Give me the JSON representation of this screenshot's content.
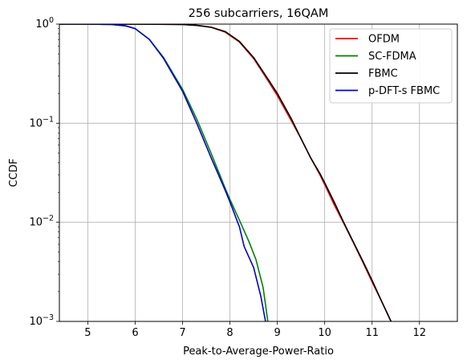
{
  "chart_data": {
    "type": "line",
    "title": "256 subcarriers, 16QAM",
    "xlabel": "Peak-to-Average-Power-Ratio",
    "ylabel": "CCDF",
    "xlim": [
      4.4,
      12.8
    ],
    "ylim": [
      0.001,
      1
    ],
    "yscale": "log",
    "grid": true,
    "legend_position": "top-right",
    "x_ticks": [
      "5",
      "6",
      "7",
      "8",
      "9",
      "10",
      "11",
      "12"
    ],
    "y_ticks": [
      {
        "base": "10",
        "exp": "−3"
      },
      {
        "base": "10",
        "exp": "−2"
      },
      {
        "base": "10",
        "exp": "−1"
      },
      {
        "base": "10",
        "exp": "0"
      }
    ],
    "series": [
      {
        "name": "OFDM",
        "color": "#ff0000",
        "x": [
          4.4,
          5.0,
          6.0,
          6.5,
          7.0,
          7.3,
          7.6,
          7.9,
          8.2,
          8.5,
          8.8,
          9.0,
          9.3,
          9.5,
          9.7,
          9.9,
          10.0,
          10.2,
          10.4,
          10.6,
          10.8,
          11.0,
          11.2,
          11.4
        ],
        "y": [
          1.0,
          1.0,
          0.999,
          0.997,
          0.99,
          0.97,
          0.93,
          0.83,
          0.66,
          0.45,
          0.27,
          0.19,
          0.105,
          0.07,
          0.045,
          0.03,
          0.024,
          0.015,
          0.0098,
          0.0063,
          0.004,
          0.0025,
          0.0016,
          0.001
        ]
      },
      {
        "name": "SC-FDMA",
        "color": "#008000",
        "x": [
          4.4,
          5.0,
          5.5,
          5.8,
          6.0,
          6.3,
          6.6,
          7.0,
          7.3,
          7.6,
          7.9,
          8.0,
          8.2,
          8.4,
          8.55,
          8.7,
          8.8
        ],
        "y": [
          1.0,
          1.0,
          0.99,
          0.96,
          0.9,
          0.7,
          0.46,
          0.22,
          0.11,
          0.05,
          0.022,
          0.017,
          0.0105,
          0.0064,
          0.0042,
          0.0022,
          0.001
        ]
      },
      {
        "name": "FBMC",
        "color": "#000000",
        "x": [
          4.4,
          5.0,
          6.0,
          6.5,
          7.0,
          7.3,
          7.6,
          7.9,
          8.2,
          8.5,
          8.8,
          9.0,
          9.3,
          9.5,
          9.7,
          9.9,
          10.0,
          10.2,
          10.4,
          10.6,
          10.8,
          11.0,
          11.2,
          11.4
        ],
        "y": [
          1.0,
          1.0,
          0.999,
          0.997,
          0.99,
          0.97,
          0.93,
          0.84,
          0.67,
          0.46,
          0.28,
          0.2,
          0.11,
          0.07,
          0.045,
          0.031,
          0.025,
          0.016,
          0.01,
          0.0064,
          0.0041,
          0.0026,
          0.0016,
          0.001
        ]
      },
      {
        "name": "p-DFT-s FBMC",
        "color": "#0000cc",
        "x": [
          4.4,
          5.0,
          5.5,
          5.8,
          6.0,
          6.3,
          6.6,
          7.0,
          7.3,
          7.6,
          7.9,
          8.0,
          8.2,
          8.3,
          8.5,
          8.65,
          8.75
        ],
        "y": [
          1.0,
          1.0,
          0.99,
          0.96,
          0.9,
          0.7,
          0.45,
          0.21,
          0.1,
          0.045,
          0.021,
          0.016,
          0.009,
          0.0057,
          0.0035,
          0.0018,
          0.001
        ]
      }
    ]
  }
}
